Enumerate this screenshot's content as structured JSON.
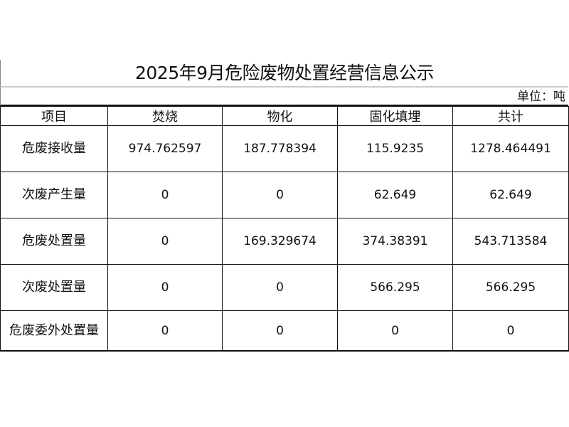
{
  "title": "2025年9月危险废物处置经营信息公示",
  "unit": "单位：吨",
  "columns": [
    "项目",
    "焚烧",
    "物化",
    "固化填埋",
    "共计"
  ],
  "rows": [
    [
      "危废接收量",
      "974.762597",
      "187.778394",
      "115.9235",
      "1278.464491"
    ],
    [
      "次废产生量",
      "0",
      "0",
      "62.649",
      "62.649"
    ],
    [
      "危废处置量",
      "0",
      "169.329674",
      "374.38391",
      "543.713584"
    ],
    [
      "次废处置量",
      "0",
      "0",
      "566.295",
      "566.295"
    ],
    [
      "危废委外处置量",
      "0",
      "0",
      "0",
      "0"
    ]
  ]
}
